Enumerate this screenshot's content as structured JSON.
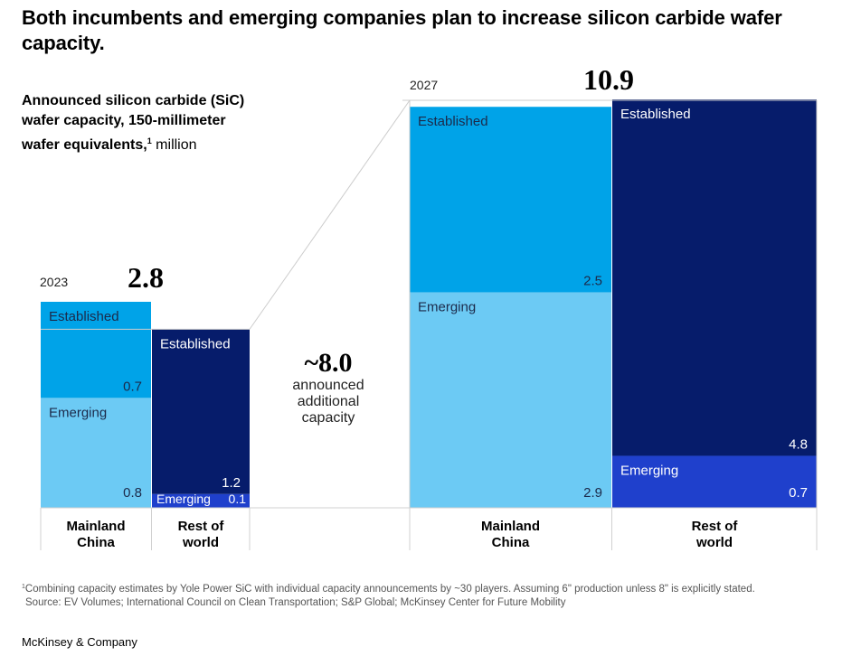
{
  "title": "Both incumbents and emerging companies plan to increase silicon carbide wafer capacity.",
  "subtitle_bold": "Announced silicon carbide (SiC) wafer capacity, 150-millimeter wafer equivalents,",
  "subtitle_sup": "1",
  "subtitle_unit": " million",
  "chart_data": {
    "type": "stacked-bar (marimekko)",
    "unit": "million 150-millimeter wafer equivalents",
    "years": [
      {
        "year": "2023",
        "total": "2.8",
        "regions": [
          {
            "name": "Mainland China",
            "label": "Mainland\nChina",
            "segments": [
              {
                "name": "Established",
                "value": 0.7
              },
              {
                "name": "Emerging",
                "value": 0.8
              }
            ]
          },
          {
            "name": "Rest of world",
            "label": "Rest of\nworld",
            "segments": [
              {
                "name": "Established",
                "value": 1.2
              },
              {
                "name": "Emerging",
                "value": 0.1
              }
            ]
          }
        ]
      },
      {
        "year": "2027",
        "total": "10.9",
        "regions": [
          {
            "name": "Mainland China",
            "label": "Mainland\nChina",
            "segments": [
              {
                "name": "Established",
                "value": 2.5
              },
              {
                "name": "Emerging",
                "value": 2.9
              }
            ]
          },
          {
            "name": "Rest of world",
            "label": "Rest of\nworld",
            "segments": [
              {
                "name": "Established",
                "value": 4.8
              },
              {
                "name": "Emerging",
                "value": 0.7
              }
            ]
          }
        ]
      }
    ],
    "annotation": {
      "value": "~8.0",
      "text": "announced additional capacity"
    },
    "colors": {
      "china_established": "#00a3e8",
      "china_emerging": "#6ccaf4",
      "row_established": "#061c6b",
      "row_emerging": "#1f40cc"
    }
  },
  "center_note": {
    "big": "~8.0",
    "line1": "announced",
    "line2": "additional",
    "line3": "capacity"
  },
  "labels": {
    "year_2023": "2023",
    "total_2023": "2.8",
    "year_2027": "2027",
    "total_2027": "10.9",
    "cat1_line1": "Mainland",
    "cat1_line2": "China",
    "cat2_line1": "Rest of",
    "cat2_line2": "world"
  },
  "footnote": {
    "sup": "1",
    "line1": "Combining capacity estimates by Yole Power SiC with individual capacity announcements by ~30 players. Assuming 6\" production unless 8\" is explicitly stated.",
    "line2": "Source: EV Volumes; International Council on Clean Transportation; S&P Global; McKinsey Center for Future Mobility"
  },
  "logo": "McKinsey & Company"
}
